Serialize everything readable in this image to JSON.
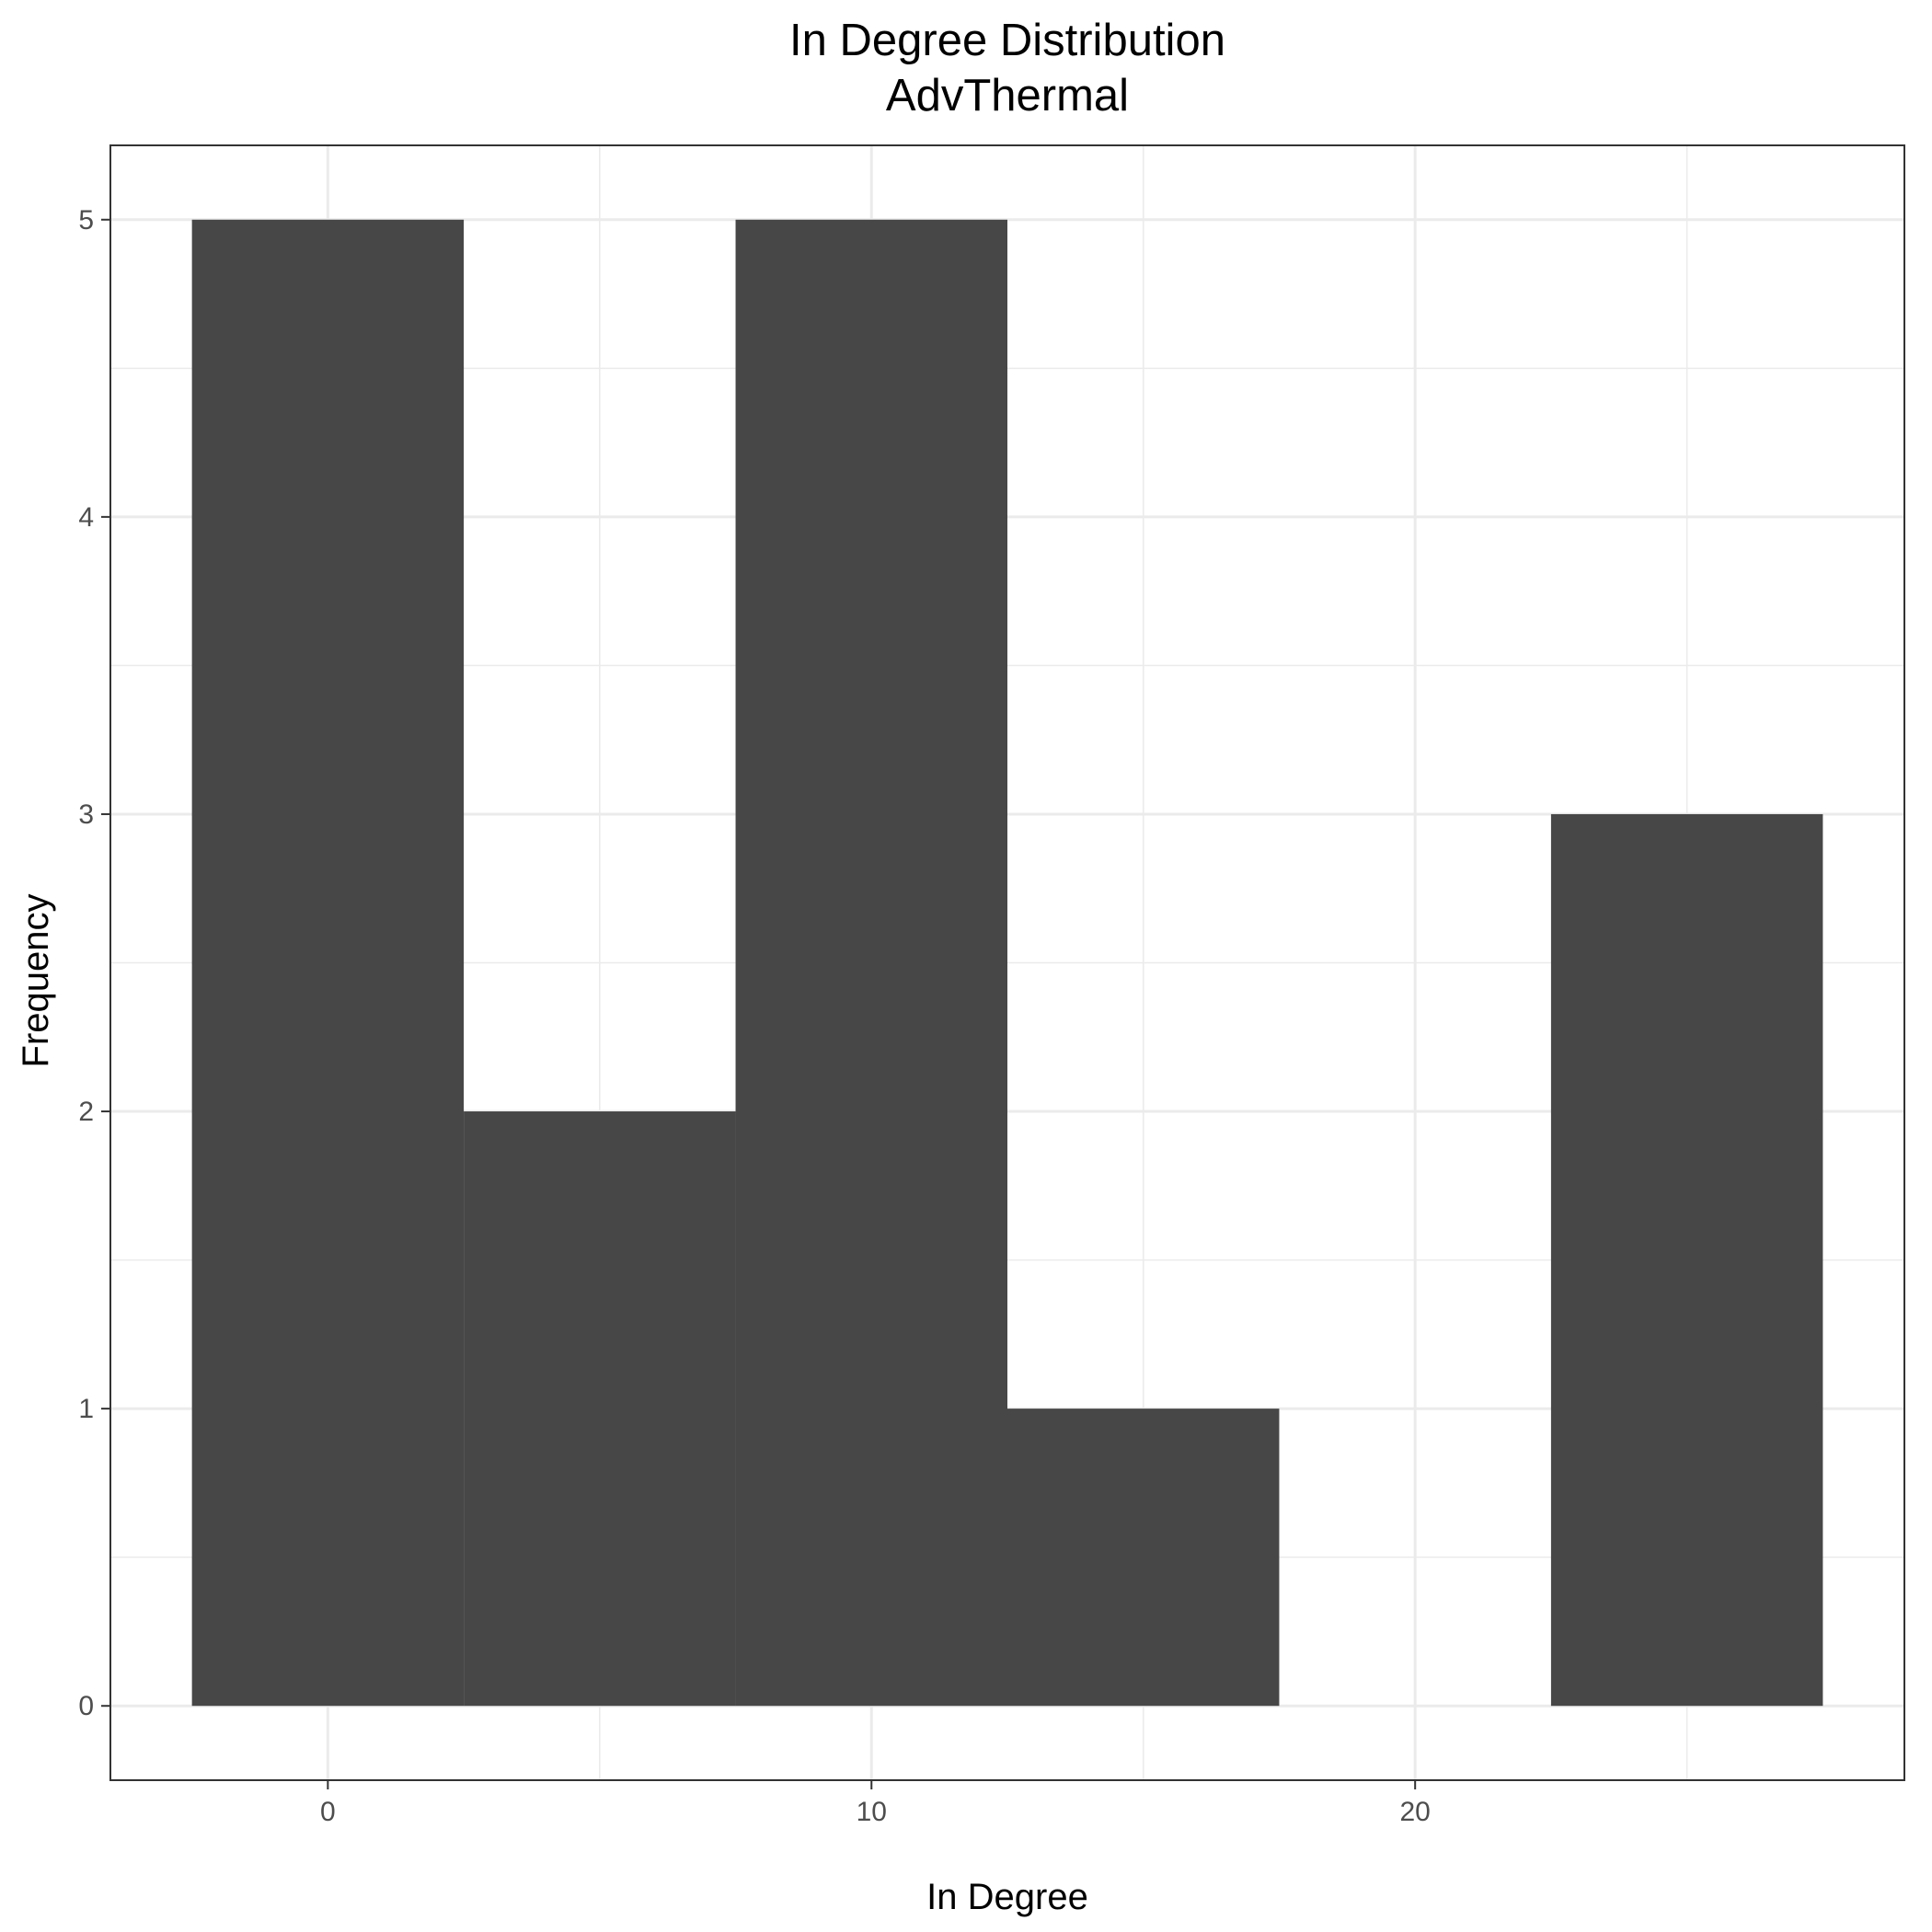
{
  "chart_data": {
    "type": "bar",
    "title": "In Degree Distribution",
    "subtitle": "AdvThermal",
    "xlabel": "In Degree",
    "ylabel": "Frequency",
    "xlim": [
      -4,
      29
    ],
    "ylim": [
      -0.25,
      5.25
    ],
    "x_ticks": [
      0,
      10,
      20
    ],
    "x_tick_labels": [
      "0",
      "10",
      "20"
    ],
    "y_ticks": [
      0,
      1,
      2,
      3,
      4,
      5
    ],
    "y_tick_labels": [
      "0",
      "1",
      "2",
      "3",
      "4",
      "5"
    ],
    "bin_width": 5,
    "bins": [
      {
        "start": -2.5,
        "end": 2.5,
        "count": 5
      },
      {
        "start": 2.5,
        "end": 7.5,
        "count": 2
      },
      {
        "start": 7.5,
        "end": 12.5,
        "count": 5
      },
      {
        "start": 12.5,
        "end": 17.5,
        "count": 1
      },
      {
        "start": 17.5,
        "end": 22.5,
        "count": 0
      },
      {
        "start": 22.5,
        "end": 27.5,
        "count": 3
      }
    ],
    "bar_color": "#474747",
    "panel_background": "#ffffff",
    "grid": true,
    "grid_color": "#ebebeb",
    "legend": "none"
  }
}
